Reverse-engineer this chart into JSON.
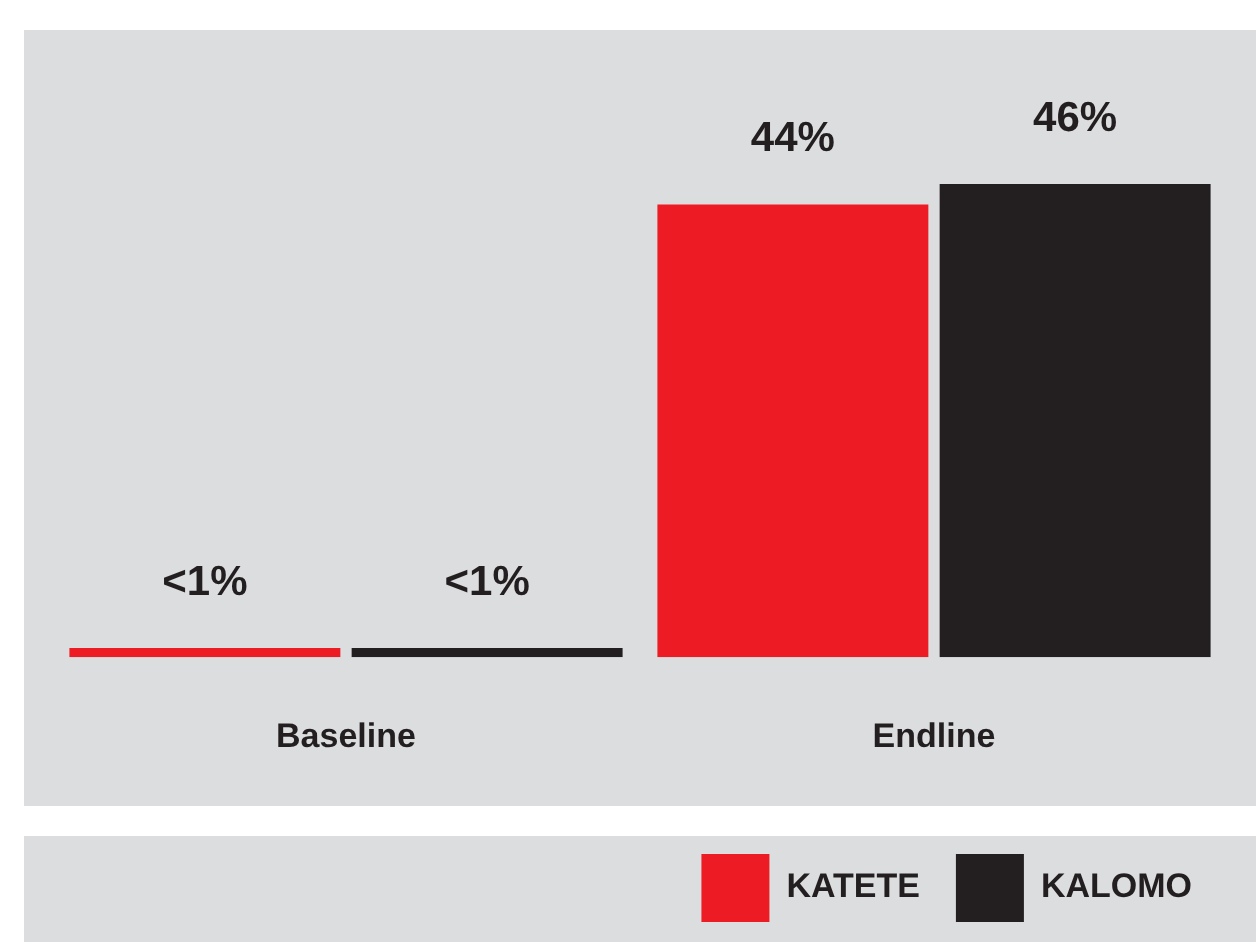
{
  "chart_data": {
    "type": "bar",
    "categories": [
      "Baseline",
      "Endline"
    ],
    "series": [
      {
        "name": "KATETE",
        "color": "#ed1c24",
        "values": [
          0.9,
          44
        ],
        "value_labels": [
          "<1%",
          "44%"
        ]
      },
      {
        "name": "KALOMO",
        "color": "#231f20",
        "values": [
          0.9,
          46
        ],
        "value_labels": [
          "<1%",
          "46%"
        ]
      }
    ],
    "tick_labels": "x",
    "grid": false,
    "legend": "bottom right"
  }
}
